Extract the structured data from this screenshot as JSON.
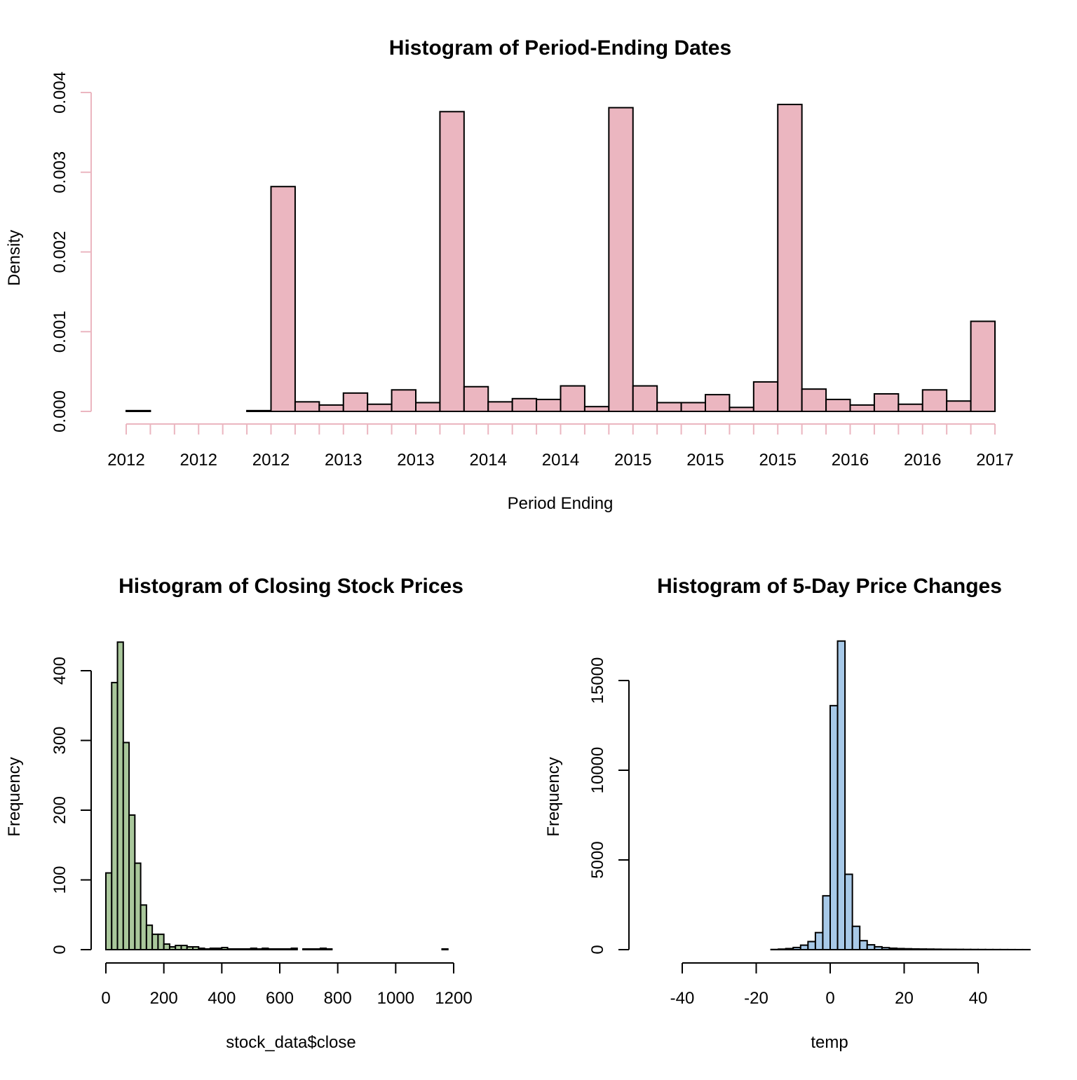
{
  "chart_data": [
    {
      "type": "histogram",
      "title": "Histogram of Period-Ending Dates",
      "xlabel": "Period Ending",
      "ylabel": "Density",
      "fill": "#ebb6c0",
      "axis_color": "#ebb6c0",
      "ylim": [
        0,
        0.004
      ],
      "yticks": [
        {
          "value": 0,
          "label": "0.000"
        },
        {
          "value": 0.001,
          "label": "0.001"
        },
        {
          "value": 0.002,
          "label": "0.002"
        },
        {
          "value": 0.003,
          "label": "0.003"
        },
        {
          "value": 0.004,
          "label": "0.004"
        }
      ],
      "bin_count": 36,
      "xticks": [
        "2012",
        "2012",
        "2012",
        "2013",
        "2013",
        "2014",
        "2014",
        "2015",
        "2015",
        "2015",
        "2016",
        "2016",
        "2017"
      ],
      "values": [
        1e-05,
        0.0,
        0.0,
        0.0,
        0.0,
        1e-05,
        0.00282,
        0.00012,
        8e-05,
        0.00023,
        9e-05,
        0.00027,
        0.00011,
        0.00376,
        0.00031,
        0.00012,
        0.00016,
        0.00015,
        0.00032,
        6e-05,
        0.00381,
        0.00032,
        0.00011,
        0.00011,
        0.00021,
        5e-05,
        0.00037,
        0.00385,
        0.00028,
        0.00015,
        8e-05,
        0.00022,
        9e-05,
        0.00027,
        0.00013,
        0.00113
      ]
    },
    {
      "type": "histogram",
      "title": "Histogram of Closing Stock Prices",
      "xlabel": "stock_data$close",
      "ylabel": "Frequency",
      "fill": "#a9c79b",
      "xlim": [
        0,
        1280
      ],
      "ylim": [
        0,
        400
      ],
      "bin_width": 20,
      "xticks": [
        0,
        200,
        400,
        600,
        800,
        1000,
        1200
      ],
      "yticks": [
        0,
        100,
        200,
        300,
        400
      ],
      "values": [
        110,
        383,
        441,
        297,
        193,
        124,
        64,
        35,
        22,
        22,
        8,
        4,
        6,
        6,
        4,
        4,
        2,
        1,
        2,
        2,
        3,
        1,
        1,
        1,
        1,
        2,
        1,
        2,
        1,
        1,
        1,
        1,
        2,
        0,
        1,
        1,
        1,
        2,
        1,
        0,
        0,
        0,
        0,
        0,
        0,
        0,
        0,
        0,
        0,
        0,
        0,
        0,
        0,
        0,
        0,
        0,
        0,
        0,
        1,
        0,
        0,
        0,
        0,
        0
      ]
    },
    {
      "type": "histogram",
      "title": "Histogram of 5-Day Price Changes",
      "xlabel": "temp",
      "ylabel": "Frequency",
      "fill": "#a7c9e8",
      "xlim": [
        -54,
        54
      ],
      "ylim": [
        0,
        15000
      ],
      "bin_width": 2,
      "xticks": [
        -40,
        -20,
        0,
        20,
        40
      ],
      "yticks": [
        0,
        5000,
        10000,
        15000
      ],
      "values": [
        0,
        0,
        0,
        0,
        0,
        0,
        0,
        0,
        0,
        0,
        0,
        0,
        0,
        0,
        0,
        0,
        0,
        0,
        0,
        10,
        30,
        60,
        120,
        250,
        450,
        950,
        3000,
        13600,
        17200,
        4200,
        1300,
        500,
        270,
        160,
        110,
        80,
        60,
        50,
        40,
        35,
        30,
        25,
        20,
        18,
        15,
        12,
        10,
        8,
        6,
        5,
        4,
        3,
        2,
        2
      ]
    }
  ]
}
